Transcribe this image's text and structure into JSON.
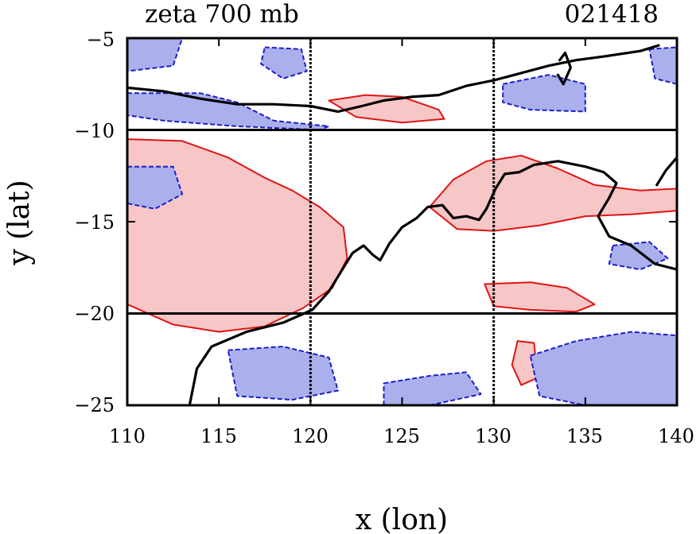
{
  "chart_data": {
    "type": "contour",
    "title_left": "zeta 700 mb",
    "title_right": "021418",
    "xlabel": "x (lon)",
    "ylabel": "y (lat)",
    "xlim": [
      110,
      140
    ],
    "ylim": [
      -25,
      -5
    ],
    "xticks": [
      110,
      115,
      120,
      125,
      130,
      135,
      140
    ],
    "yticks": [
      -25,
      -20,
      -15,
      -10,
      -5
    ],
    "xtick_labels": [
      "110",
      "115",
      "120",
      "125",
      "130",
      "135",
      "140"
    ],
    "ytick_labels": [
      "−25",
      "−20",
      "−15",
      "−10",
      "−5"
    ],
    "gridlines": {
      "lon": [
        120,
        130
      ],
      "lat": [
        -10,
        -20
      ]
    },
    "colors": {
      "positive_fill": "#f7c6c6",
      "positive_line": "#e01414",
      "negative_fill": "#aab0ec",
      "negative_line": "#1c1ccc",
      "coast": "#000000",
      "grid": "#000000"
    },
    "positive_regions": [
      {
        "name": "western-vortex",
        "points": [
          [
            110,
            -10.5
          ],
          [
            113,
            -10.6
          ],
          [
            115.5,
            -11.5
          ],
          [
            117.5,
            -12.6
          ],
          [
            119,
            -13.3
          ],
          [
            120.5,
            -14.2
          ],
          [
            121.8,
            -15.3
          ],
          [
            122,
            -17
          ],
          [
            121.2,
            -18.6
          ],
          [
            119.6,
            -19.7
          ],
          [
            117.5,
            -20.7
          ],
          [
            115,
            -21
          ],
          [
            112.5,
            -20.6
          ],
          [
            110,
            -19.5
          ]
        ]
      },
      {
        "name": "eastern-band",
        "points": [
          [
            126.5,
            -14.2
          ],
          [
            127.8,
            -12.7
          ],
          [
            129.6,
            -11.7
          ],
          [
            131.5,
            -11.4
          ],
          [
            133.5,
            -12.1
          ],
          [
            135.5,
            -13
          ],
          [
            138,
            -13.3
          ],
          [
            140,
            -13.2
          ],
          [
            140,
            -14.4
          ],
          [
            137.5,
            -14.6
          ],
          [
            135,
            -14.7
          ],
          [
            132.5,
            -15.2
          ],
          [
            130,
            -15.5
          ],
          [
            128,
            -15.4
          ]
        ]
      },
      {
        "name": "northern-streak",
        "points": [
          [
            121,
            -8.4
          ],
          [
            123,
            -8.1
          ],
          [
            125,
            -8.2
          ],
          [
            127,
            -8.9
          ],
          [
            127.3,
            -9.4
          ],
          [
            125,
            -9.6
          ],
          [
            122.5,
            -9.3
          ]
        ]
      },
      {
        "name": "southern-band",
        "points": [
          [
            129.5,
            -18.4
          ],
          [
            132,
            -18.3
          ],
          [
            134,
            -18.6
          ],
          [
            135.5,
            -19.5
          ],
          [
            134.5,
            -19.9
          ],
          [
            132,
            -19.8
          ],
          [
            130,
            -19.6
          ]
        ]
      },
      {
        "name": "south-cell",
        "points": [
          [
            131.3,
            -21.5
          ],
          [
            132.2,
            -21.6
          ],
          [
            132.4,
            -23.5
          ],
          [
            131.5,
            -23.9
          ],
          [
            131,
            -22.8
          ]
        ]
      }
    ],
    "negative_regions": [
      {
        "name": "nw-fringe",
        "points": [
          [
            110,
            -5
          ],
          [
            113,
            -5
          ],
          [
            112.5,
            -6.5
          ],
          [
            110,
            -6.8
          ]
        ]
      },
      {
        "name": "north-strip",
        "points": [
          [
            110,
            -8
          ],
          [
            114,
            -8
          ],
          [
            116,
            -8.5
          ],
          [
            118,
            -9.5
          ],
          [
            121,
            -9.8
          ],
          [
            120.5,
            -10
          ],
          [
            116,
            -9.8
          ],
          [
            112,
            -9.5
          ],
          [
            110,
            -9.2
          ]
        ]
      },
      {
        "name": "north-blob",
        "points": [
          [
            117.5,
            -5.5
          ],
          [
            119.5,
            -5.6
          ],
          [
            119.8,
            -6.8
          ],
          [
            118.5,
            -7.2
          ],
          [
            117.3,
            -6.4
          ]
        ]
      },
      {
        "name": "ne-blob",
        "points": [
          [
            130.5,
            -7.5
          ],
          [
            133,
            -7
          ],
          [
            135,
            -7.5
          ],
          [
            135,
            -9
          ],
          [
            132,
            -8.9
          ],
          [
            130.5,
            -8.5
          ]
        ]
      },
      {
        "name": "far-ne",
        "points": [
          [
            138.5,
            -5.6
          ],
          [
            140,
            -5.5
          ],
          [
            140,
            -7.5
          ],
          [
            138.8,
            -7.2
          ]
        ]
      },
      {
        "name": "west-cell",
        "points": [
          [
            110,
            -12
          ],
          [
            112.5,
            -12
          ],
          [
            113,
            -13.5
          ],
          [
            111.5,
            -14.3
          ],
          [
            110,
            -14
          ]
        ]
      },
      {
        "name": "sw-land",
        "points": [
          [
            115.5,
            -22
          ],
          [
            118.5,
            -21.8
          ],
          [
            121,
            -22.4
          ],
          [
            121.5,
            -24.2
          ],
          [
            119,
            -24.7
          ],
          [
            116,
            -24.5
          ]
        ]
      },
      {
        "name": "south-mid",
        "points": [
          [
            124,
            -23.8
          ],
          [
            126.5,
            -23.4
          ],
          [
            128.5,
            -23.2
          ],
          [
            129.3,
            -24.4
          ],
          [
            126.5,
            -25
          ],
          [
            124,
            -25
          ]
        ]
      },
      {
        "name": "se-land",
        "points": [
          [
            132,
            -22.3
          ],
          [
            134.5,
            -21.5
          ],
          [
            137.5,
            -21
          ],
          [
            140,
            -21.2
          ],
          [
            140,
            -25
          ],
          [
            135,
            -25
          ],
          [
            132.5,
            -24.5
          ]
        ]
      },
      {
        "name": "east-blob",
        "points": [
          [
            136.5,
            -16.3
          ],
          [
            138.5,
            -16.1
          ],
          [
            139.5,
            -17
          ],
          [
            138,
            -17.6
          ],
          [
            136.3,
            -17.3
          ]
        ]
      }
    ],
    "coastlines": [
      {
        "name": "north-coast",
        "points": [
          [
            110,
            -7.7
          ],
          [
            112,
            -7.9
          ],
          [
            114,
            -8.3
          ],
          [
            116,
            -8.6
          ],
          [
            118,
            -8.6
          ],
          [
            120,
            -8.7
          ],
          [
            121.5,
            -9
          ],
          [
            122.8,
            -8.7
          ],
          [
            124,
            -8.4
          ],
          [
            125.5,
            -8.2
          ],
          [
            127,
            -8.1
          ],
          [
            128.5,
            -7.6
          ],
          [
            130,
            -7.3
          ],
          [
            131.5,
            -6.9
          ],
          [
            133,
            -6.5
          ],
          [
            134.5,
            -6.2
          ],
          [
            136,
            -6
          ],
          [
            138,
            -5.7
          ],
          [
            139,
            -5.4
          ]
        ]
      },
      {
        "name": "main-coast",
        "points": [
          [
            113.4,
            -25
          ],
          [
            113.8,
            -23
          ],
          [
            114.6,
            -21.8
          ],
          [
            116.5,
            -21
          ],
          [
            118.5,
            -20.5
          ],
          [
            120.1,
            -19.8
          ],
          [
            121,
            -18.8
          ],
          [
            121.8,
            -17.5
          ],
          [
            122.3,
            -16.7
          ],
          [
            122.9,
            -16.3
          ],
          [
            123.4,
            -16.8
          ],
          [
            123.8,
            -17.1
          ],
          [
            124.3,
            -16.2
          ],
          [
            125,
            -15.3
          ],
          [
            125.8,
            -14.8
          ],
          [
            126.4,
            -14.2
          ],
          [
            127.2,
            -14.1
          ],
          [
            127.8,
            -14.8
          ],
          [
            128.5,
            -14.7
          ],
          [
            129.2,
            -14.9
          ],
          [
            129.6,
            -14.3
          ],
          [
            130.1,
            -13.2
          ],
          [
            130.6,
            -12.4
          ],
          [
            131.4,
            -12.3
          ],
          [
            132.2,
            -11.9
          ],
          [
            133.5,
            -11.7
          ],
          [
            135,
            -12
          ],
          [
            136,
            -12.3
          ],
          [
            136.7,
            -12.9
          ],
          [
            136.3,
            -13.7
          ],
          [
            135.7,
            -14.7
          ],
          [
            136.3,
            -15.8
          ],
          [
            137.5,
            -16.3
          ],
          [
            138.8,
            -17.3
          ],
          [
            140,
            -17.6
          ]
        ]
      },
      {
        "name": "east-coast-top",
        "points": [
          [
            140,
            -11.5
          ],
          [
            139.4,
            -12.2
          ],
          [
            138.9,
            -13
          ]
        ]
      },
      {
        "name": "island-north",
        "points": [
          [
            133.6,
            -6.2
          ],
          [
            133.9,
            -5.8
          ],
          [
            134.2,
            -6.6
          ],
          [
            133.8,
            -7.5
          ],
          [
            133.5,
            -7
          ]
        ]
      }
    ]
  }
}
